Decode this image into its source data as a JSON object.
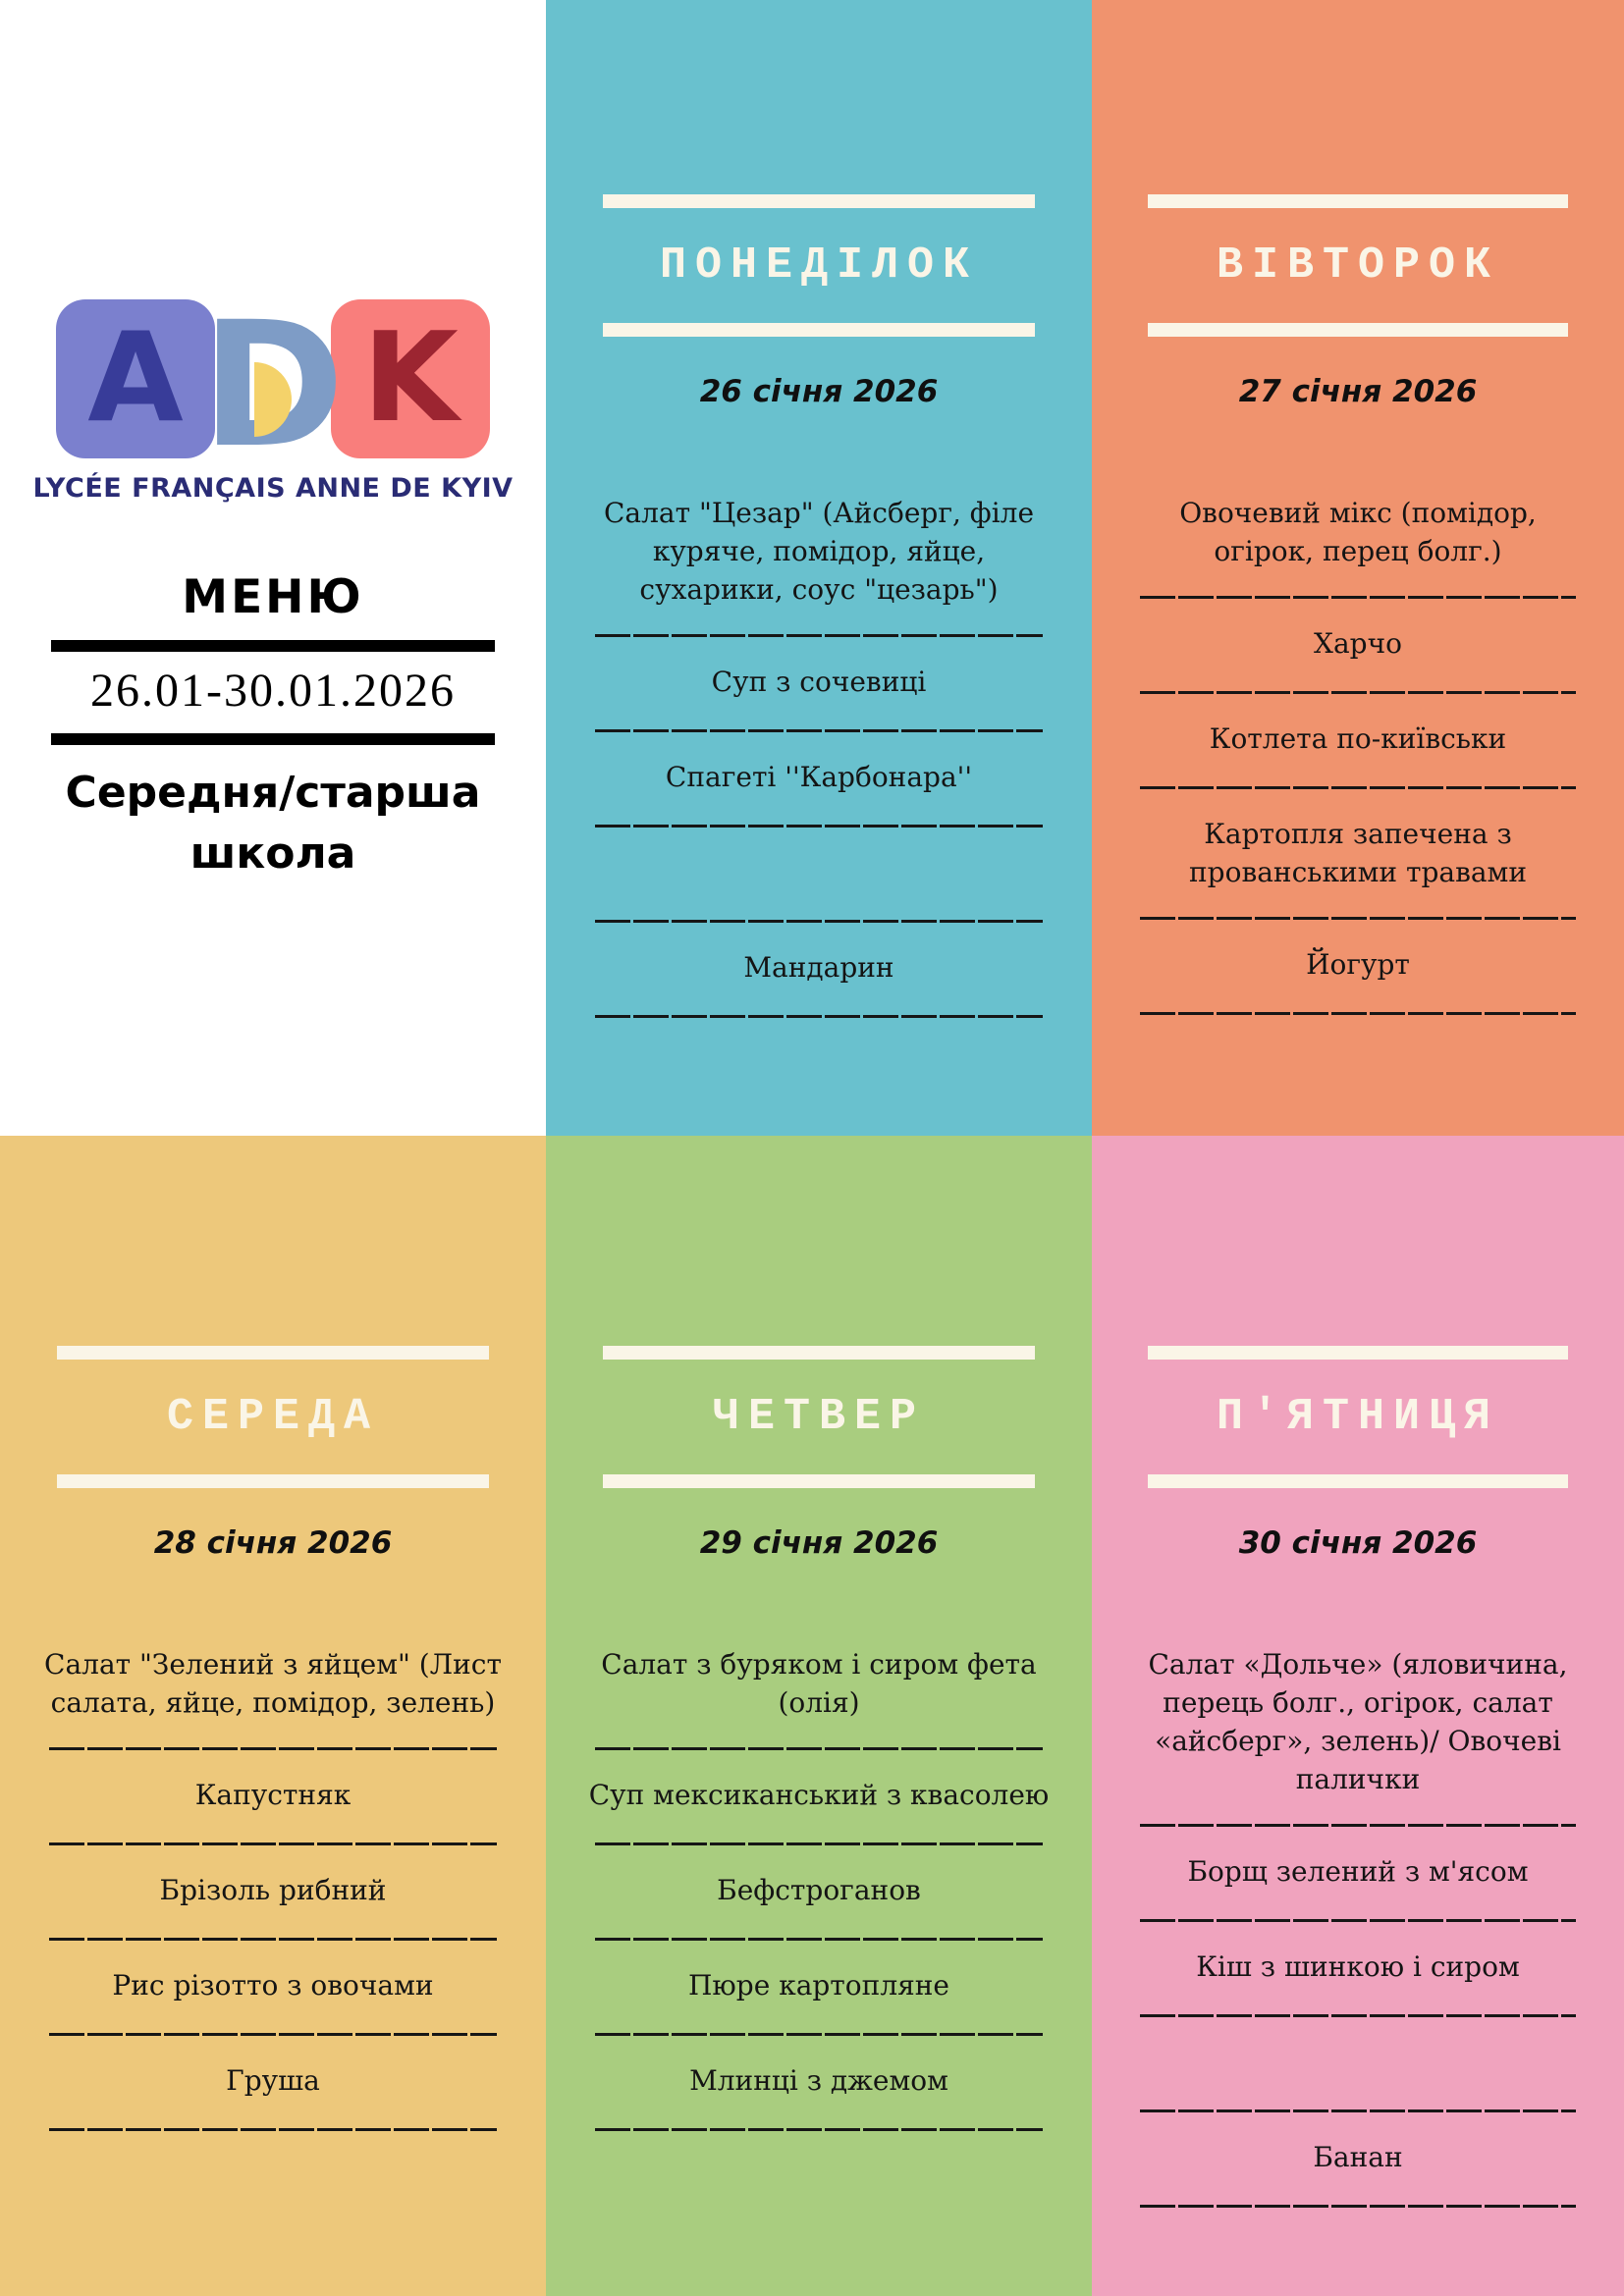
{
  "theme": {
    "header_cream": "#FAF5E7",
    "text_black": "#141414"
  },
  "info": {
    "logo": {
      "a": "A",
      "d": "D",
      "k": "K",
      "a_bg": "#7B80CE",
      "a_fg": "#383C99",
      "d_fg": "#7E9CC6",
      "d_dot": "#F4D26A",
      "k_bg": "#F97E7C",
      "k_fg": "#9C2531",
      "wordmark": "LYCÉE FRANÇAIS ANNE DE KYIV",
      "wordmark_color": "#2A2C75"
    },
    "menu_title": "МЕНЮ",
    "date_range": "26.01-30.01.2026",
    "subtitle": "Середня/старша школа"
  },
  "days": [
    {
      "name": "ПОНЕДІЛОК",
      "date": "26 січня 2026",
      "color": "#69C1CE",
      "items": [
        "Салат \"Цезар\" (Айсберг, філе куряче, помідор, яйце, сухарики, соус \"цезарь\")",
        "Суп з сочевиці",
        "Спагеті ''Карбонара''",
        "",
        "Мандарин"
      ]
    },
    {
      "name": "ВІВТОРОК",
      "date": "27 січня 2026",
      "color": "#F0936E",
      "items": [
        "Овочевий мікс (помідор, огірок, перец болг.)",
        "Харчо",
        "Котлета по-київськи",
        "Картопля запечена з прованськими травами",
        "Йогурт"
      ]
    },
    {
      "name": "СЕРЕДА",
      "date": "28 січня 2026",
      "color": "#EDC87B",
      "items": [
        "Салат \"Зелений з яйцем\" (Лист салата, яйце, помідор, зелень)",
        "Капустняк",
        "Брізоль рибний",
        "Рис різотто з овочами",
        "Груша"
      ]
    },
    {
      "name": "ЧЕТВЕР",
      "date": "29 січня 2026",
      "color": "#A9CD7F",
      "items": [
        "Салат з буряком і сиром фета (олія)",
        "Суп мексиканський з квасолею",
        "Бефстроганов",
        "Пюре картопляне",
        "Млинці з джемом"
      ]
    },
    {
      "name": "П'ЯТНИЦЯ",
      "date": "30 січня 2026",
      "color": "#F0A3BE",
      "items": [
        "Салат «Дольче» (яловичина, перець болг., огірок, салат «айсберг», зелень)/ Овочеві палички",
        "Борщ зелений з м'ясом",
        "Кіш з шинкою і сиром",
        "",
        "Банан"
      ]
    }
  ]
}
